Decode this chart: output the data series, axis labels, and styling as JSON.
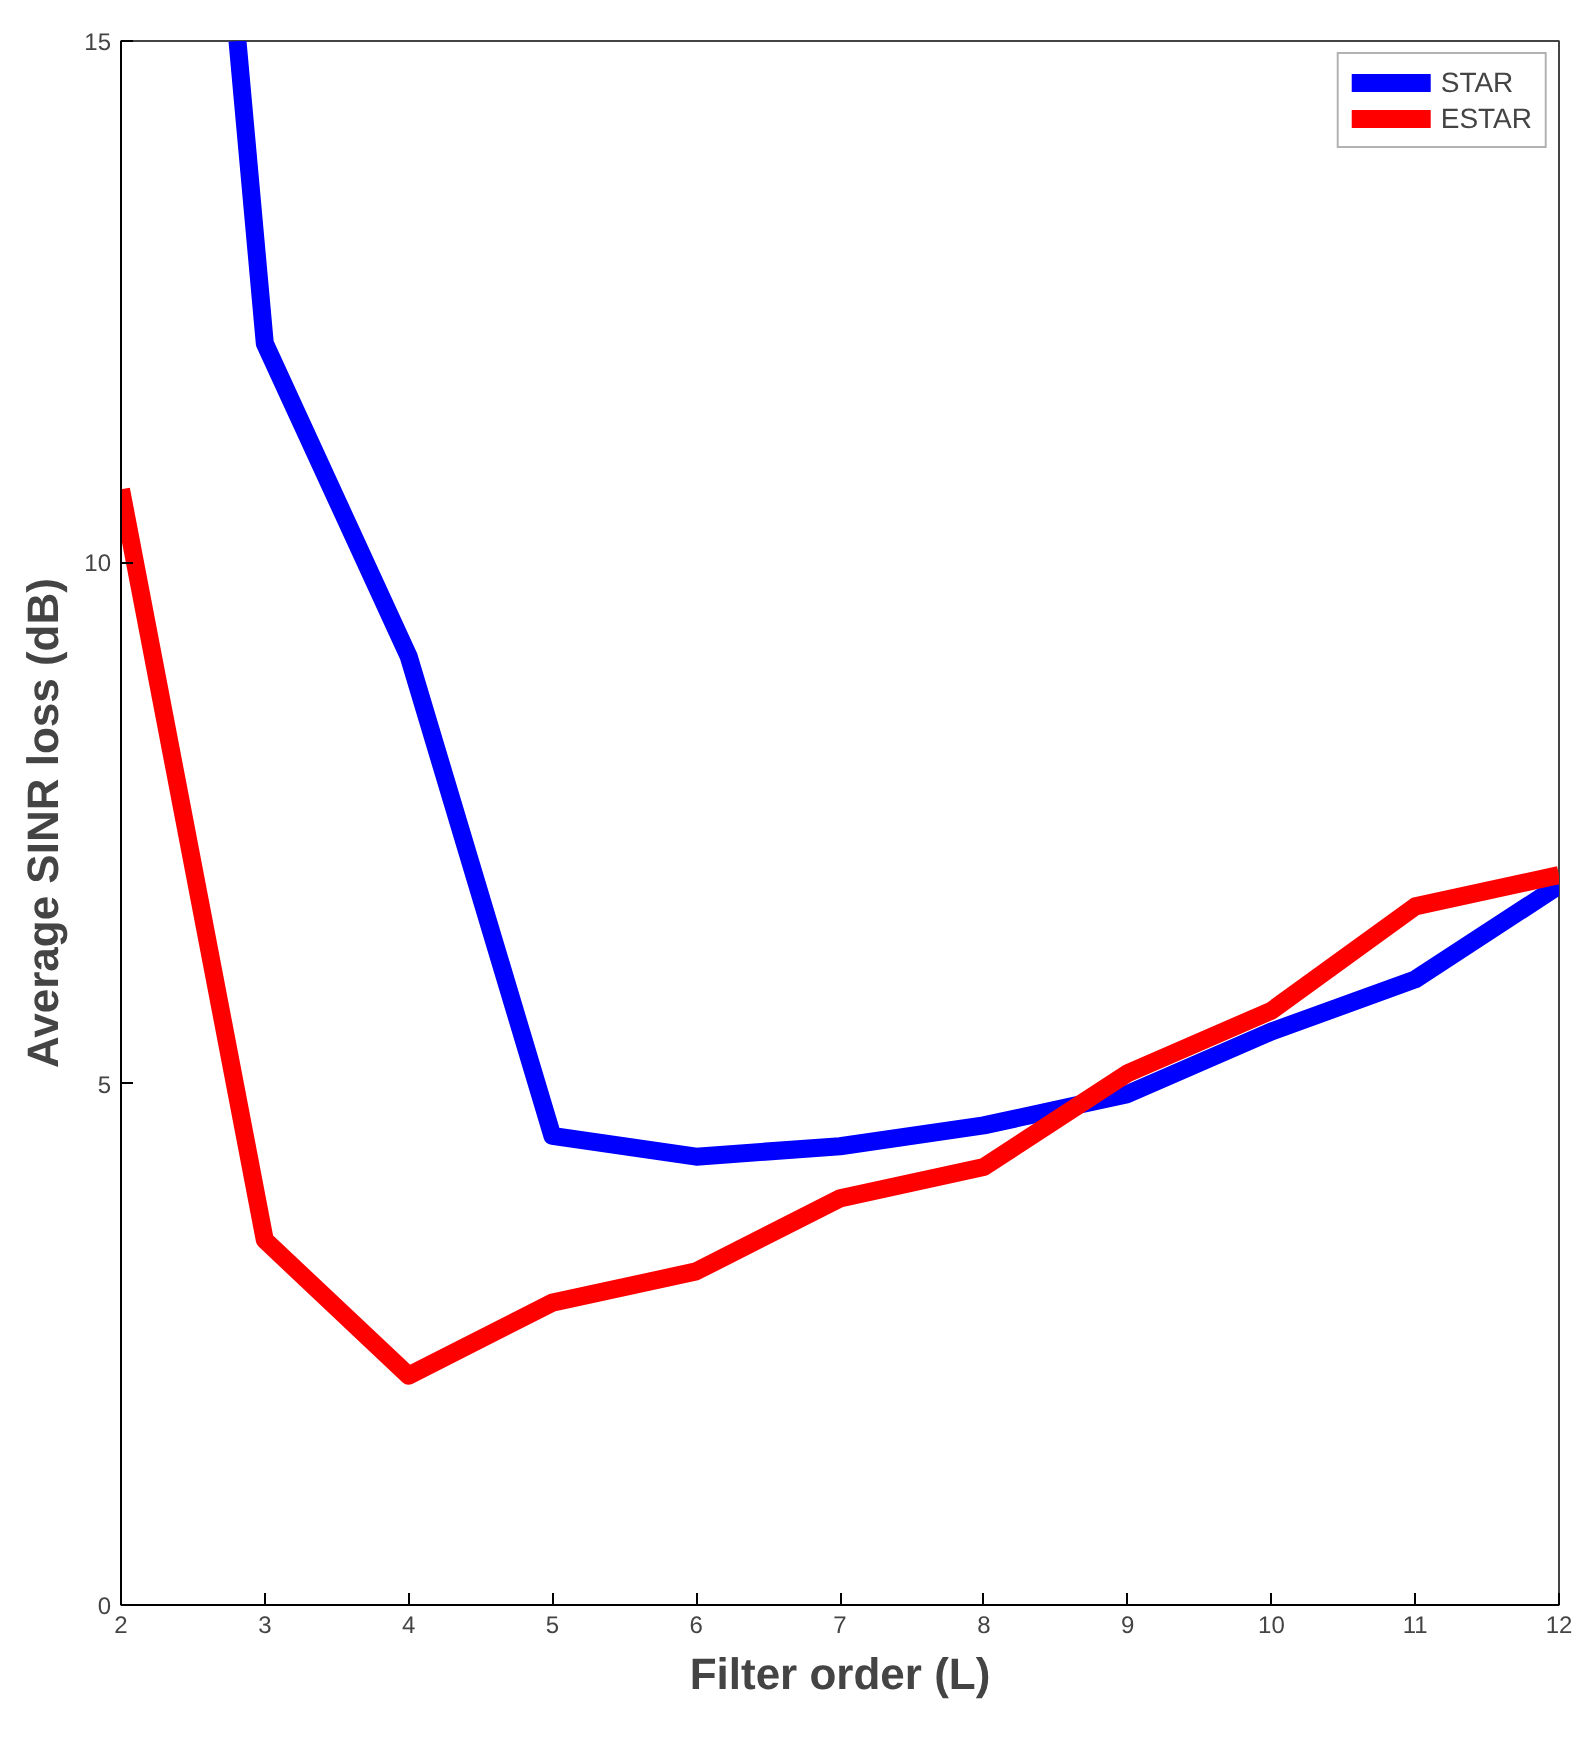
{
  "chart_data": {
    "type": "line",
    "xlabel": "Filter order (L)",
    "ylabel": "Average SINR loss (dB)",
    "x": [
      2,
      3,
      4,
      5,
      6,
      7,
      8,
      9,
      10,
      11,
      12
    ],
    "series": [
      {
        "name": "STAR",
        "color": "#0000ff",
        "x": [
          2.81,
          3,
          4,
          5,
          6,
          7,
          8,
          9,
          10,
          11,
          12
        ],
        "values": [
          15,
          12.1,
          9.1,
          4.5,
          4.3,
          4.4,
          4.6,
          4.9,
          5.5,
          6.0,
          6.9
        ]
      },
      {
        "name": "ESTAR",
        "color": "#ff0000",
        "values": [
          10.7,
          3.5,
          2.2,
          2.9,
          3.2,
          3.9,
          4.2,
          5.1,
          5.7,
          6.7,
          7.0
        ]
      }
    ],
    "xlim": [
      2,
      12
    ],
    "ylim": [
      0,
      15
    ],
    "xticks": [
      2,
      3,
      4,
      5,
      6,
      7,
      8,
      9,
      10,
      11,
      12
    ],
    "yticks": [
      0,
      5,
      10,
      15
    ],
    "grid": false,
    "legend": "top right",
    "marker": "none",
    "line_style": "solid"
  }
}
